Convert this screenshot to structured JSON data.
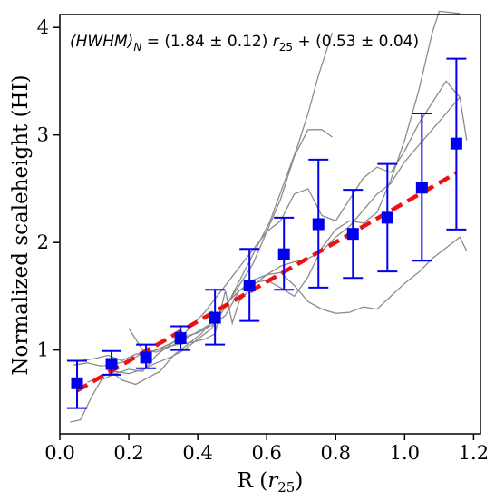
{
  "chart_data": {
    "type": "scatter",
    "xlabel_main": "R (",
    "xlabel_var": "r",
    "xlabel_sub": "25",
    "xlabel_close": ")",
    "ylabel": "Normalized scaleheight (HI)",
    "xlim": [
      0.0,
      1.22
    ],
    "ylim": [
      0.22,
      4.12
    ],
    "x_ticks": [
      0.0,
      0.2,
      0.4,
      0.6,
      0.8,
      1.0,
      1.2
    ],
    "x_tick_labels": [
      "0.0",
      "0.2",
      "0.4",
      "0.6",
      "0.8",
      "1.0",
      "1.2"
    ],
    "y_ticks": [
      1,
      2,
      3,
      4
    ],
    "y_tick_labels": [
      "1",
      "2",
      "3",
      "4"
    ],
    "grid": false,
    "annotation": {
      "hwhm": "(HWHM)",
      "hwhm_sub": "N",
      "formula_mid": " = (1.84 ± 0.12) ",
      "r": "r",
      "r_sub": "25",
      "formula_end": " + (0.53 ± 0.04)"
    },
    "binned_series": {
      "color": "#0000ee",
      "x": [
        0.05,
        0.15,
        0.25,
        0.35,
        0.45,
        0.55,
        0.65,
        0.75,
        0.85,
        0.95,
        1.05,
        1.15
      ],
      "y": [
        0.69,
        0.87,
        0.93,
        1.11,
        1.3,
        1.6,
        1.89,
        2.17,
        2.08,
        2.23,
        2.51,
        2.92
      ],
      "err_low": [
        0.46,
        0.77,
        0.83,
        1.0,
        1.05,
        1.27,
        1.56,
        1.58,
        1.67,
        1.73,
        1.83,
        2.12
      ],
      "err_high": [
        0.9,
        0.99,
        1.05,
        1.22,
        1.56,
        1.94,
        2.23,
        2.77,
        2.49,
        2.73,
        3.2,
        3.71
      ]
    },
    "fit_line": {
      "color": "#ee1111",
      "slope": 1.84,
      "intercept": 0.53,
      "x_range": [
        0.05,
        1.15
      ]
    },
    "galaxy_profiles": {
      "color": "#8c8c8c",
      "lines": [
        [
          [
            0.03,
            0.33
          ],
          [
            0.06,
            0.35
          ],
          [
            0.09,
            0.55
          ],
          [
            0.12,
            0.72
          ],
          [
            0.16,
            0.78
          ],
          [
            0.2,
            0.82
          ],
          [
            0.24,
            0.8
          ],
          [
            0.28,
            0.95
          ],
          [
            0.32,
            1.05
          ],
          [
            0.36,
            1.15
          ],
          [
            0.42,
            1.35
          ],
          [
            0.48,
            1.6
          ],
          [
            0.54,
            1.85
          ],
          [
            0.6,
            2.1
          ],
          [
            0.64,
            2.2
          ],
          [
            0.68,
            2.45
          ],
          [
            0.72,
            2.5
          ],
          [
            0.76,
            2.25
          ],
          [
            0.8,
            2.2
          ],
          [
            0.84,
            2.4
          ],
          [
            0.88,
            2.6
          ],
          [
            0.92,
            2.7
          ],
          [
            0.96,
            2.65
          ],
          [
            1.0,
            2.85
          ],
          [
            1.04,
            3.1
          ],
          [
            1.08,
            3.3
          ],
          [
            1.12,
            3.5
          ],
          [
            1.16,
            3.35
          ],
          [
            1.18,
            2.95
          ]
        ],
        [
          [
            0.04,
            0.86
          ],
          [
            0.08,
            0.88
          ],
          [
            0.12,
            0.85
          ],
          [
            0.16,
            0.87
          ],
          [
            0.2,
            0.9
          ],
          [
            0.24,
            0.97
          ],
          [
            0.28,
            1.0
          ],
          [
            0.32,
            1.06
          ],
          [
            0.36,
            1.12
          ],
          [
            0.4,
            1.16
          ],
          [
            0.44,
            1.23
          ],
          [
            0.48,
            1.32
          ],
          [
            0.52,
            1.55
          ],
          [
            0.56,
            1.65
          ],
          [
            0.6,
            1.7
          ],
          [
            0.64,
            1.72
          ],
          [
            0.68,
            1.6
          ],
          [
            0.72,
            1.45
          ],
          [
            0.76,
            1.38
          ],
          [
            0.8,
            1.34
          ],
          [
            0.84,
            1.35
          ],
          [
            0.88,
            1.4
          ],
          [
            0.92,
            1.38
          ],
          [
            0.96,
            1.5
          ],
          [
            1.0,
            1.62
          ],
          [
            1.04,
            1.72
          ],
          [
            1.08,
            1.85
          ],
          [
            1.12,
            1.95
          ],
          [
            1.16,
            2.05
          ],
          [
            1.18,
            1.92
          ]
        ],
        [
          [
            0.06,
            0.9
          ],
          [
            0.1,
            0.92
          ],
          [
            0.14,
            0.95
          ],
          [
            0.18,
            0.9
          ],
          [
            0.22,
            0.96
          ],
          [
            0.26,
            0.98
          ],
          [
            0.3,
            1.02
          ],
          [
            0.34,
            1.05
          ],
          [
            0.38,
            1.07
          ],
          [
            0.42,
            1.1
          ],
          [
            0.45,
            1.15
          ],
          [
            0.48,
            1.55
          ],
          [
            0.5,
            1.25
          ],
          [
            0.52,
            1.45
          ],
          [
            0.56,
            1.6
          ],
          [
            0.6,
            1.7
          ],
          [
            0.64,
            1.78
          ],
          [
            0.68,
            1.82
          ],
          [
            0.72,
            1.85
          ],
          [
            0.76,
            1.92
          ],
          [
            0.8,
            2.05
          ],
          [
            0.84,
            2.15
          ],
          [
            0.88,
            2.3
          ],
          [
            0.92,
            2.45
          ],
          [
            0.96,
            2.55
          ],
          [
            1.0,
            2.75
          ],
          [
            1.04,
            2.9
          ],
          [
            1.08,
            3.05
          ],
          [
            1.12,
            3.2
          ],
          [
            1.16,
            3.35
          ]
        ],
        [
          [
            0.08,
            0.7
          ],
          [
            0.12,
            0.75
          ],
          [
            0.16,
            0.8
          ],
          [
            0.2,
            0.78
          ],
          [
            0.24,
            0.82
          ],
          [
            0.28,
            0.88
          ],
          [
            0.32,
            0.93
          ],
          [
            0.36,
            1.0
          ],
          [
            0.4,
            1.1
          ],
          [
            0.44,
            1.2
          ],
          [
            0.48,
            1.4
          ],
          [
            0.52,
            1.6
          ],
          [
            0.56,
            1.8
          ],
          [
            0.6,
            2.1
          ],
          [
            0.64,
            2.4
          ],
          [
            0.68,
            2.8
          ],
          [
            0.72,
            3.05
          ],
          [
            0.76,
            3.05
          ],
          [
            0.79,
            2.98
          ]
        ],
        [
          [
            0.14,
            0.82
          ],
          [
            0.18,
            0.72
          ],
          [
            0.22,
            0.68
          ],
          [
            0.26,
            0.75
          ],
          [
            0.29,
            0.8
          ],
          [
            0.33,
            0.95
          ],
          [
            0.37,
            1.05
          ],
          [
            0.41,
            1.15
          ],
          [
            0.45,
            1.3
          ],
          [
            0.49,
            1.45
          ],
          [
            0.53,
            1.7
          ],
          [
            0.57,
            1.95
          ],
          [
            0.61,
            2.2
          ],
          [
            0.65,
            2.55
          ],
          [
            0.69,
            2.9
          ],
          [
            0.72,
            3.2
          ],
          [
            0.75,
            3.55
          ],
          [
            0.79,
            3.95
          ]
        ],
        [
          [
            0.2,
            1.2
          ],
          [
            0.24,
            1.0
          ],
          [
            0.28,
            0.98
          ],
          [
            0.32,
            1.03
          ],
          [
            0.36,
            1.1
          ],
          [
            0.4,
            1.17
          ],
          [
            0.44,
            1.25
          ],
          [
            0.48,
            1.42
          ],
          [
            0.52,
            1.55
          ],
          [
            0.56,
            1.62
          ],
          [
            0.6,
            1.65
          ],
          [
            0.64,
            1.58
          ],
          [
            0.68,
            1.5
          ],
          [
            0.72,
            1.68
          ],
          [
            0.76,
            1.95
          ],
          [
            0.8,
            2.12
          ],
          [
            0.84,
            2.2
          ],
          [
            0.88,
            2.18
          ],
          [
            0.92,
            2.28
          ],
          [
            0.96,
            2.58
          ],
          [
            1.0,
            2.95
          ],
          [
            1.04,
            3.4
          ],
          [
            1.08,
            3.95
          ],
          [
            1.1,
            4.15
          ],
          [
            1.16,
            4.13
          ]
        ]
      ]
    }
  }
}
